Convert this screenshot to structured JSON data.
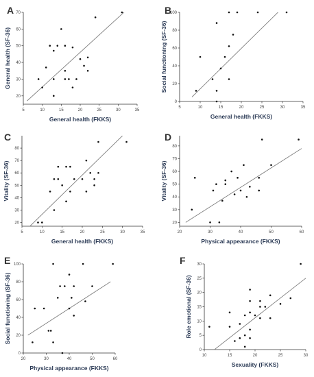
{
  "style": {
    "point_color": "#111111",
    "line_color": "#808080",
    "axis_color": "#333333",
    "label_color": "#2b3a55"
  },
  "chart_data": [
    {
      "panel": "A",
      "type": "scatter",
      "xlabel": "General health (FKKS)",
      "ylabel": "General health (SF-36)",
      "xlim": [
        5,
        35
      ],
      "ylim": [
        15,
        70
      ],
      "xticks": [
        5,
        10,
        15,
        20,
        25,
        30,
        35
      ],
      "yticks": [
        20,
        30,
        40,
        50,
        60,
        70
      ],
      "points": [
        [
          9,
          30
        ],
        [
          10,
          25
        ],
        [
          11,
          37
        ],
        [
          12,
          50
        ],
        [
          13,
          47
        ],
        [
          13,
          30
        ],
        [
          13,
          20
        ],
        [
          14,
          50
        ],
        [
          15,
          60
        ],
        [
          16,
          50
        ],
        [
          16,
          35
        ],
        [
          16,
          30
        ],
        [
          17,
          30
        ],
        [
          18,
          49
        ],
        [
          18,
          25
        ],
        [
          19,
          30
        ],
        [
          20,
          42
        ],
        [
          21,
          38
        ],
        [
          22,
          43
        ],
        [
          22,
          35
        ],
        [
          24,
          67
        ],
        [
          31,
          70
        ]
      ],
      "fit": [
        [
          6,
          17
        ],
        [
          32,
          71
        ]
      ]
    },
    {
      "panel": "B",
      "type": "scatter",
      "xlabel": "General health (FKKS)",
      "ylabel": "Social functioning (SF-36)",
      "xlim": [
        5,
        35
      ],
      "ylim": [
        0,
        100
      ],
      "xticks": [
        5,
        10,
        15,
        20,
        25,
        30,
        35
      ],
      "yticks": [
        0,
        20,
        40,
        60,
        80,
        100
      ],
      "points": [
        [
          9,
          12
        ],
        [
          10,
          50
        ],
        [
          13,
          25
        ],
        [
          14,
          88
        ],
        [
          14,
          12
        ],
        [
          14,
          0
        ],
        [
          15,
          37
        ],
        [
          16,
          50
        ],
        [
          17,
          100
        ],
        [
          17,
          62
        ],
        [
          17,
          25
        ],
        [
          18,
          75
        ],
        [
          19,
          100
        ],
        [
          24,
          100
        ],
        [
          31,
          100
        ]
      ],
      "fit": [
        [
          8,
          5
        ],
        [
          30,
          105
        ]
      ]
    },
    {
      "panel": "C",
      "type": "scatter",
      "xlabel": "General health (FKKS)",
      "ylabel": "Vitality (SF-36)",
      "xlim": [
        5,
        35
      ],
      "ylim": [
        17,
        90
      ],
      "xticks": [
        5,
        10,
        15,
        20,
        25,
        30,
        35
      ],
      "yticks": [
        20,
        30,
        40,
        50,
        60,
        70,
        80
      ],
      "points": [
        [
          9,
          20
        ],
        [
          10,
          20
        ],
        [
          12,
          45
        ],
        [
          13,
          55
        ],
        [
          13,
          30
        ],
        [
          14,
          65
        ],
        [
          14,
          55
        ],
        [
          15,
          50
        ],
        [
          16,
          65
        ],
        [
          16,
          37
        ],
        [
          17,
          65
        ],
        [
          17,
          45
        ],
        [
          18,
          55
        ],
        [
          20,
          55
        ],
        [
          21,
          70
        ],
        [
          21,
          45
        ],
        [
          22,
          60
        ],
        [
          23,
          55
        ],
        [
          23,
          50
        ],
        [
          24,
          85
        ],
        [
          24,
          60
        ],
        [
          31,
          85
        ]
      ],
      "fit": [
        [
          7,
          17
        ],
        [
          30,
          90
        ]
      ]
    },
    {
      "panel": "D",
      "type": "scatter",
      "xlabel": "Physical appearance (FKKS)",
      "ylabel": "Vitality (SF-36)",
      "xlim": [
        20,
        60
      ],
      "ylim": [
        17,
        88
      ],
      "xticks": [
        20,
        30,
        40,
        50,
        60
      ],
      "yticks": [
        20,
        30,
        40,
        50,
        60,
        70,
        80
      ],
      "points": [
        [
          24,
          30
        ],
        [
          25,
          55
        ],
        [
          30,
          20
        ],
        [
          31,
          45
        ],
        [
          32,
          50
        ],
        [
          33,
          20
        ],
        [
          34,
          37
        ],
        [
          35,
          50
        ],
        [
          35,
          53
        ],
        [
          37,
          60
        ],
        [
          38,
          42
        ],
        [
          39,
          55
        ],
        [
          40,
          45
        ],
        [
          41,
          65
        ],
        [
          43,
          48
        ],
        [
          42,
          40
        ],
        [
          46,
          55
        ],
        [
          46,
          45
        ],
        [
          47,
          85
        ],
        [
          50,
          65
        ],
        [
          59,
          85
        ]
      ],
      "fit": [
        [
          22,
          20
        ],
        [
          60,
          78
        ]
      ]
    },
    {
      "panel": "E",
      "type": "scatter",
      "xlabel": "Physical appearance (FKKS)",
      "ylabel": "Social functioning (SF-36)",
      "xlim": [
        20,
        60
      ],
      "ylim": [
        0,
        100
      ],
      "xticks": [
        20,
        30,
        40,
        50,
        60
      ],
      "yticks": [
        0,
        20,
        40,
        60,
        80,
        100
      ],
      "points": [
        [
          24,
          12
        ],
        [
          25,
          50
        ],
        [
          29,
          50
        ],
        [
          31,
          25
        ],
        [
          32,
          25
        ],
        [
          33,
          12
        ],
        [
          33,
          100
        ],
        [
          35,
          62
        ],
        [
          36,
          75
        ],
        [
          37,
          0
        ],
        [
          38,
          75
        ],
        [
          40,
          88
        ],
        [
          40,
          50
        ],
        [
          41,
          62
        ],
        [
          42,
          75
        ],
        [
          42,
          42
        ],
        [
          46,
          100
        ],
        [
          47,
          58
        ],
        [
          50,
          75
        ],
        [
          59,
          100
        ]
      ],
      "fit": [
        [
          22,
          20
        ],
        [
          58,
          80
        ]
      ]
    },
    {
      "panel": "F",
      "type": "scatter",
      "xlabel": "Sexuality (FKKS)",
      "ylabel": "Role emotional (SF-36)",
      "xlim": [
        10,
        30
      ],
      "ylim": [
        0,
        30
      ],
      "xticks": [
        10,
        15,
        20,
        25,
        30
      ],
      "yticks": [
        0,
        5,
        10,
        15,
        20,
        25,
        30
      ],
      "points": [
        [
          11,
          8
        ],
        [
          15,
          13
        ],
        [
          15,
          8
        ],
        [
          16,
          3
        ],
        [
          17,
          9
        ],
        [
          17,
          4
        ],
        [
          18,
          1
        ],
        [
          18,
          5
        ],
        [
          18,
          12
        ],
        [
          19,
          21
        ],
        [
          19,
          17
        ],
        [
          19,
          13
        ],
        [
          19,
          7
        ],
        [
          19,
          4
        ],
        [
          20,
          12
        ],
        [
          21,
          17
        ],
        [
          21,
          15
        ],
        [
          21,
          11
        ],
        [
          22,
          15
        ],
        [
          23,
          19
        ],
        [
          23,
          11
        ],
        [
          25,
          16
        ],
        [
          27,
          18
        ],
        [
          29,
          30
        ]
      ],
      "fit": [
        [
          12,
          0
        ],
        [
          30,
          25
        ]
      ]
    }
  ]
}
